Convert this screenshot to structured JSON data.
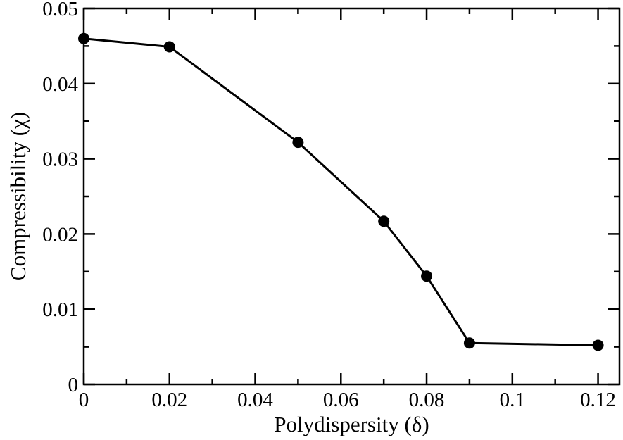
{
  "chart_data": {
    "type": "line",
    "title": "",
    "xlabel": "Polydispersity (δ)",
    "ylabel": "Compressibility (χ)",
    "xlim": [
      0,
      0.125
    ],
    "ylim": [
      0,
      0.05
    ],
    "x_ticks": [
      0,
      0.02,
      0.04,
      0.06,
      0.08,
      0.1,
      0.12
    ],
    "x_tick_labels": [
      "0",
      "0.02",
      "0.04",
      "0.06",
      "0.08",
      "0.1",
      "0.12"
    ],
    "y_ticks": [
      0,
      0.01,
      0.02,
      0.03,
      0.04,
      0.05
    ],
    "y_tick_labels": [
      "0",
      "0.01",
      "0.02",
      "0.03",
      "0.04",
      "0.05"
    ],
    "grid": false,
    "legend": "none",
    "series": [
      {
        "x": [
          0,
          0.02,
          0.05,
          0.07,
          0.08,
          0.09,
          0.12
        ],
        "y": [
          0.046,
          0.0449,
          0.0322,
          0.0217,
          0.0144,
          0.0055,
          0.0052
        ],
        "color": "#000000",
        "marker": "filled-circle"
      }
    ]
  }
}
